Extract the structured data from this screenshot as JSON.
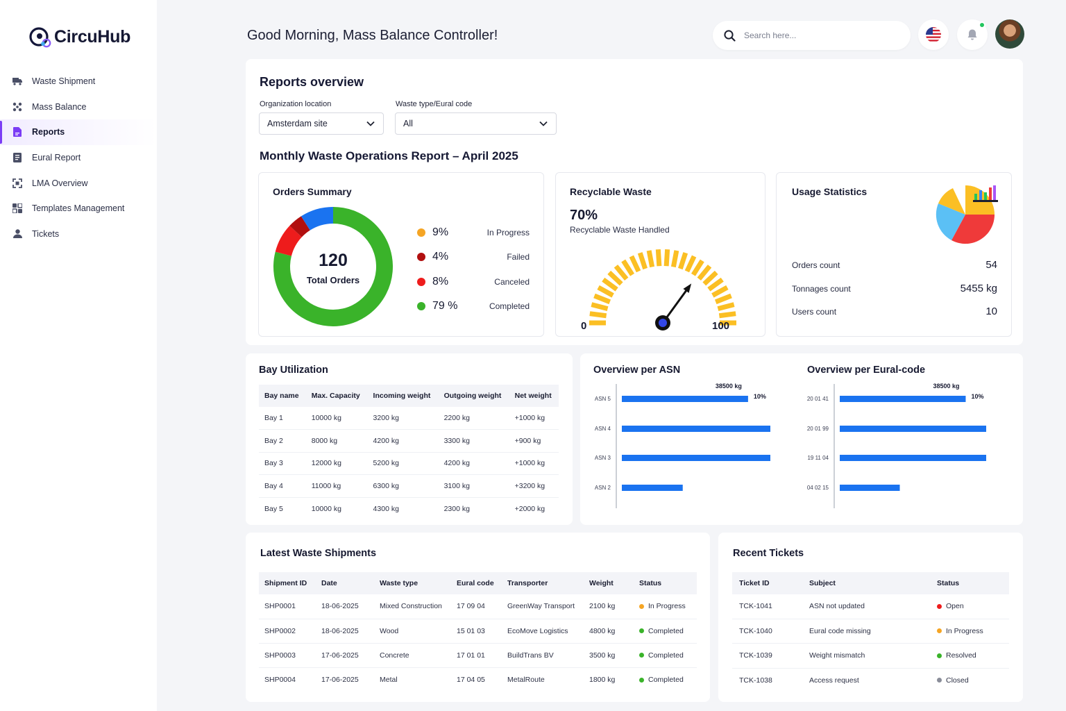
{
  "brand": {
    "name": "CircuHub"
  },
  "sidebar": {
    "items": [
      {
        "label": "Waste Shipment",
        "icon": "truck-icon",
        "active": false
      },
      {
        "label": "Mass Balance",
        "icon": "network-icon",
        "active": false
      },
      {
        "label": "Reports",
        "icon": "report-icon",
        "active": true
      },
      {
        "label": "Eural Report",
        "icon": "document-icon",
        "active": false
      },
      {
        "label": "LMA Overview",
        "icon": "scan-icon",
        "active": false
      },
      {
        "label": "Templates Management",
        "icon": "templates-icon",
        "active": false
      },
      {
        "label": "Tickets",
        "icon": "user-icon",
        "active": false
      }
    ]
  },
  "header": {
    "greeting": "Good Morning, Mass Balance Controller!",
    "search_placeholder": "Search here...",
    "colors": {
      "accent": "#7b3cf5",
      "notification": "#22c55e"
    }
  },
  "reports": {
    "title": "Reports overview",
    "filters": {
      "location_label": "Organization location",
      "location_value": "Amsterdam site",
      "waste_label": "Waste type/Eural code",
      "waste_value": "All"
    },
    "monthly_title": "Monthly Waste Operations Report – April 2025"
  },
  "orders_summary": {
    "title": "Orders Summary",
    "total": "120",
    "total_label": "Total Orders",
    "legend": [
      {
        "pct": "9%",
        "label": "In Progress",
        "color": "#f5a524"
      },
      {
        "pct": "4%",
        "label": "Failed",
        "color": "#b10f0f"
      },
      {
        "pct": "8%",
        "label": "Canceled",
        "color": "#ee1c1c"
      },
      {
        "pct": "79 %",
        "label": "Completed",
        "color": "#3ab32a"
      }
    ]
  },
  "recyclable": {
    "title": "Recyclable Waste",
    "value": "70%",
    "label": "Recyclable Waste Handled",
    "gauge_fraction": 0.7,
    "min": "0",
    "max": "100"
  },
  "usage": {
    "title": "Usage Statistics",
    "rows": [
      {
        "label": "Orders count",
        "value": "54"
      },
      {
        "label": "Tonnages count",
        "value": "5455 kg"
      },
      {
        "label": "Users count",
        "value": "10"
      }
    ]
  },
  "bay": {
    "title": "Bay Utilization",
    "columns": [
      "Bay name",
      "Max. Capacity",
      "Incoming weight",
      "Outgoing weight",
      "Net weight"
    ],
    "rows": [
      [
        "Bay 1",
        "10000 kg",
        "3200 kg",
        "2200 kg",
        "+1000 kg"
      ],
      [
        "Bay 2",
        "8000 kg",
        "4200 kg",
        "3300 kg",
        "+900 kg"
      ],
      [
        "Bay 3",
        "12000 kg",
        "5200 kg",
        "4200 kg",
        "+1000 kg"
      ],
      [
        "Bay 4",
        "11000 kg",
        "6300 kg",
        "3100 kg",
        "+3200 kg"
      ],
      [
        "Bay 5",
        "10000 kg",
        "4300 kg",
        "2300 kg",
        "+2000 kg"
      ]
    ]
  },
  "chart_data": [
    {
      "type": "pie",
      "title": "Orders Summary",
      "categories": [
        "In Progress",
        "Failed",
        "Canceled",
        "Completed"
      ],
      "values": [
        9,
        4,
        8,
        79
      ]
    },
    {
      "type": "bar",
      "title": "Overview per ASN",
      "orientation": "horizontal",
      "categories": [
        "ASN 5",
        "ASN 4",
        "ASN 3",
        "ASN 2"
      ],
      "values": [
        0.85,
        1.0,
        1.0,
        0.41
      ],
      "annotation": {
        "value": "38500 kg",
        "pct": "10%"
      }
    },
    {
      "type": "bar",
      "title": "Overview per Eural-code",
      "orientation": "horizontal",
      "categories": [
        "20 01 41",
        "20 01 99",
        "19 11 04",
        "04 02 15"
      ],
      "values": [
        0.86,
        1.0,
        1.0,
        0.41
      ],
      "annotation": {
        "value": "38500 kg",
        "pct": "10%"
      }
    }
  ],
  "shipments": {
    "title": "Latest Waste Shipments",
    "columns": [
      "Shipment ID",
      "Date",
      "Waste type",
      "Eural code",
      "Transporter",
      "Weight",
      "Status"
    ],
    "rows": [
      {
        "id": "SHP0001",
        "date": "18-06-2025",
        "type": "Mixed Construction",
        "code": "17 09 04",
        "transporter": "GreenWay Transport",
        "weight": "2100  kg",
        "status": "In Progress",
        "color": "#f5a524"
      },
      {
        "id": "SHP0002",
        "date": "18-06-2025",
        "type": "Wood",
        "code": "15 01 03",
        "transporter": "EcoMove Logistics",
        "weight": "4800  kg",
        "status": "Completed",
        "color": "#3ab32a"
      },
      {
        "id": "SHP0003",
        "date": "17-06-2025",
        "type": "Concrete",
        "code": "17 01 01",
        "transporter": "BuildTrans BV",
        "weight": "3500  kg",
        "status": "Completed",
        "color": "#3ab32a"
      },
      {
        "id": "SHP0004",
        "date": "17-06-2025",
        "type": "Metal",
        "code": "17 04 05",
        "transporter": "MetalRoute",
        "weight": "1800  kg",
        "status": "Completed",
        "color": "#3ab32a"
      }
    ]
  },
  "tickets": {
    "title": "Recent Tickets",
    "columns": [
      "Ticket ID",
      "Subject",
      "Status"
    ],
    "rows": [
      {
        "id": "TCK-1041",
        "subject": "ASN not updated",
        "status": "Open",
        "color": "#ee1c1c"
      },
      {
        "id": "TCK-1040",
        "subject": "Eural code missing",
        "status": "In Progress",
        "color": "#f5a524"
      },
      {
        "id": "TCK-1039",
        "subject": "Weight mismatch",
        "status": "Resolved",
        "color": "#3ab32a"
      },
      {
        "id": "TCK-1038",
        "subject": "Access request",
        "status": "Closed",
        "color": "#8a8d99"
      }
    ]
  }
}
